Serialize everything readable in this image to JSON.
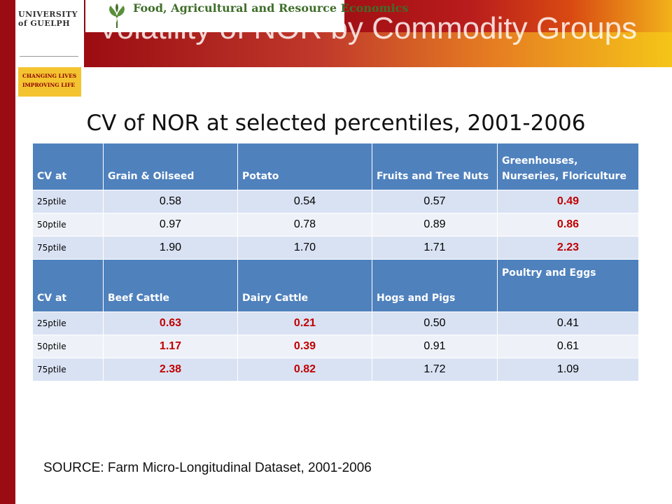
{
  "header": {
    "university_name": "UNIVERSITY of GUELPH",
    "university_tagline": "CHANGING LIVES IMPROVING LIFE",
    "department": "Food, Agricultural and Resource Economics",
    "slide_title": "Volatility of NOR by Commodity Groups"
  },
  "table_title": "CV of NOR at selected percentiles, 2001-2006",
  "table1": {
    "columns": [
      "CV at",
      "Grain & Oilseed",
      "Potato",
      "Fruits and Tree Nuts",
      "Greenhouses, Nurseries, Floriculture"
    ],
    "rows": [
      [
        "25ptile",
        "0.58",
        "0.54",
        "0.57",
        "0.49"
      ],
      [
        "50ptile",
        "0.97",
        "0.78",
        "0.89",
        "0.86"
      ],
      [
        "75ptile",
        "1.90",
        "1.70",
        "1.71",
        "2.23"
      ]
    ]
  },
  "table2": {
    "columns": [
      "CV at",
      "Beef Cattle",
      "Dairy Cattle",
      "Hogs and Pigs",
      "Poultry and Eggs"
    ],
    "rows": [
      [
        "25ptile",
        "0.63",
        "0.21",
        "0.50",
        "0.41"
      ],
      [
        "50ptile",
        "1.17",
        "0.39",
        "0.91",
        "0.61"
      ],
      [
        "75ptile",
        "2.38",
        "0.82",
        "1.72",
        "1.09"
      ]
    ]
  },
  "highlight_color": "#c00000",
  "header_color": "#4f81bd",
  "source": "SOURCE: Farm Micro-Longitudinal Dataset, 2001-2006"
}
